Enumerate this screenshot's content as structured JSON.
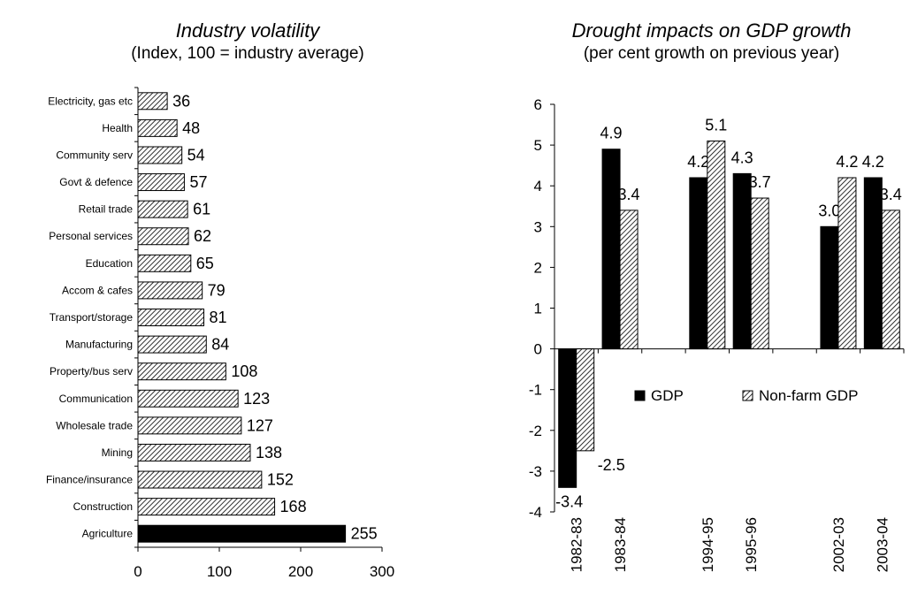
{
  "chart_data": [
    {
      "type": "bar",
      "orientation": "horizontal",
      "title": "Industry volatility",
      "subtitle": "(Index, 100 = industry average)",
      "categories": [
        "Electricity, gas etc",
        "Health",
        "Community serv",
        "Govt & defence",
        "Retail trade",
        "Personal services",
        "Education",
        "Accom & cafes",
        "Transport/storage",
        "Manufacturing",
        "Property/bus serv",
        "Communication",
        "Wholesale trade",
        "Mining",
        "Finance/insurance",
        "Construction",
        "Agriculture"
      ],
      "values": [
        36,
        48,
        54,
        57,
        61,
        62,
        65,
        79,
        81,
        84,
        108,
        123,
        127,
        138,
        152,
        168,
        255
      ],
      "highlight": "Agriculture",
      "xlim": [
        0,
        300
      ],
      "xticks": [
        "0",
        "100",
        "200",
        "300"
      ],
      "xlabel": "",
      "ylabel": "",
      "colors": {
        "bar_pattern": "#000000",
        "highlight": "#000000"
      }
    },
    {
      "type": "bar",
      "title": "Drought impacts on GDP growth",
      "subtitle": "(per cent growth on previous year)",
      "categories": [
        "1982-83",
        "1983-84",
        "",
        "1994-95",
        "1995-96",
        "",
        "2002-03",
        "2003-04"
      ],
      "series": [
        {
          "name": "GDP",
          "values": [
            -3.4,
            4.9,
            null,
            4.2,
            4.3,
            null,
            3.0,
            4.2
          ],
          "labels": [
            "-3.4",
            "4.9",
            "",
            "4.2",
            "4.3",
            "",
            "3.0",
            "4.2"
          ],
          "fill": "solid"
        },
        {
          "name": "Non-farm GDP",
          "values": [
            -2.5,
            3.4,
            null,
            5.1,
            3.7,
            null,
            4.2,
            3.4
          ],
          "labels": [
            "-2.5",
            "3.4",
            "",
            "5.1",
            "3.7",
            "",
            "4.2",
            "3.4"
          ],
          "fill": "hatched"
        }
      ],
      "ylim": [
        -4,
        6
      ],
      "yticks": [
        "-4",
        "-3",
        "-2",
        "-1",
        "0",
        "1",
        "2",
        "3",
        "4",
        "5",
        "6"
      ],
      "legend": "center",
      "xlabel": "",
      "ylabel": ""
    }
  ]
}
